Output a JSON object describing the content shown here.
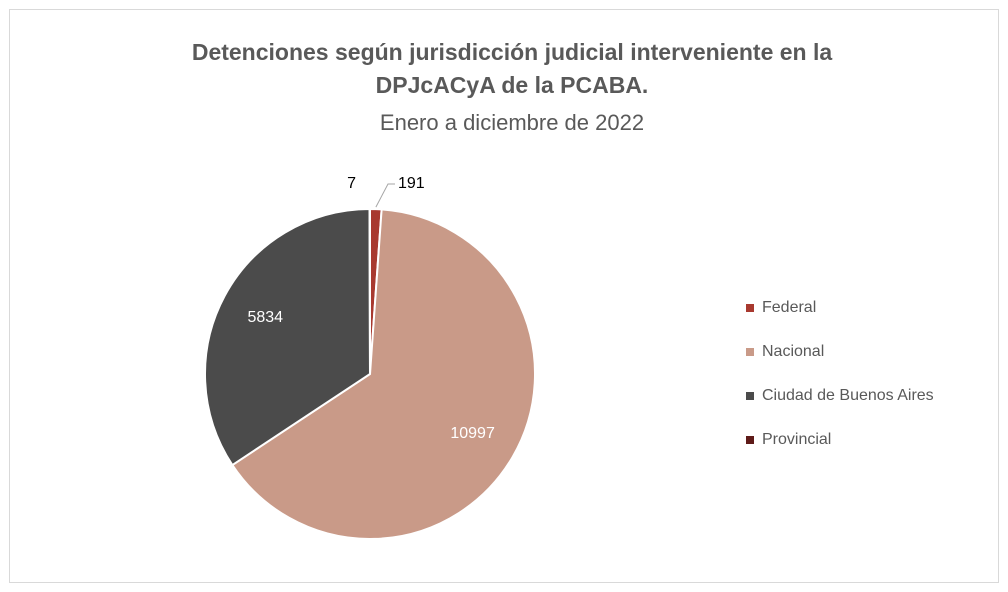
{
  "chart_data": {
    "type": "pie",
    "title": "Detenciones según jurisdicción judicial interveniente en la DPJcACyA de la PCABA.",
    "subtitle": "Enero a diciembre de 2022",
    "categories": [
      "Federal",
      "Nacional",
      "Ciudad de Buenos Aires",
      "Provincial"
    ],
    "values": [
      191,
      10997,
      5834,
      7
    ],
    "colors": [
      "#a8392f",
      "#c99a88",
      "#4b4b4b",
      "#5e1b18"
    ],
    "legend": "right"
  }
}
